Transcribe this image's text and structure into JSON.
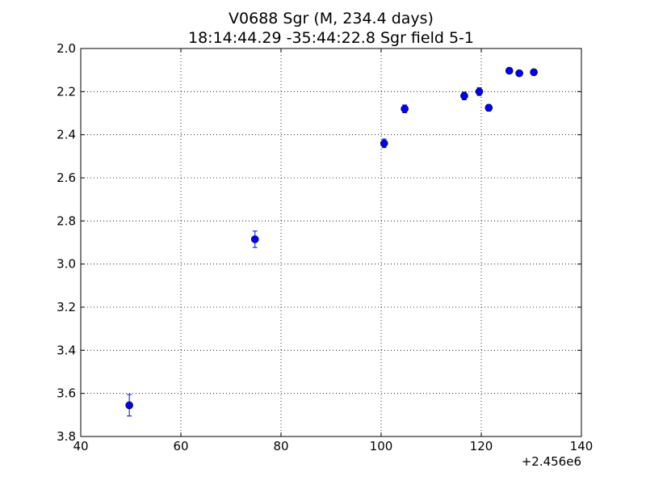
{
  "chart_data": {
    "type": "scatter",
    "title": "V0688 Sgr  (M, 234.4 days)",
    "subtitle": "18:14:44.29 -35:44:22.8 Sgr field 5-1",
    "xlabel": "",
    "ylabel": "",
    "x_offset_label": "+2.456e6",
    "xlim": [
      40,
      140
    ],
    "ylim": [
      3.8,
      2.0
    ],
    "y_inverted": true,
    "grid": true,
    "x_ticks": [
      40,
      60,
      80,
      100,
      120,
      140
    ],
    "x_tick_labels": [
      "40",
      "60",
      "80",
      "100",
      "120",
      "140"
    ],
    "y_ticks": [
      2.0,
      2.2,
      2.4,
      2.6,
      2.8,
      3.0,
      3.2,
      3.4,
      3.6,
      3.8
    ],
    "y_tick_labels": [
      "2.0",
      "2.2",
      "2.4",
      "2.6",
      "2.8",
      "3.0",
      "3.2",
      "3.4",
      "3.6",
      "3.8"
    ],
    "marker_color": "#0000ff",
    "series": [
      {
        "points": [
          {
            "x": 49.7,
            "y": 3.655,
            "err": 0.05
          },
          {
            "x": 74.8,
            "y": 2.885,
            "err": 0.038
          },
          {
            "x": 100.6,
            "y": 2.44,
            "err": 0.02
          },
          {
            "x": 104.7,
            "y": 2.28,
            "err": 0.018
          },
          {
            "x": 116.6,
            "y": 2.22,
            "err": 0.018
          },
          {
            "x": 119.6,
            "y": 2.2,
            "err": 0.018
          },
          {
            "x": 121.5,
            "y": 2.275,
            "err": 0.015
          },
          {
            "x": 125.6,
            "y": 2.103,
            "err": 0.01
          },
          {
            "x": 127.6,
            "y": 2.115,
            "err": 0.01
          },
          {
            "x": 130.5,
            "y": 2.11,
            "err": 0.01
          }
        ]
      }
    ]
  }
}
